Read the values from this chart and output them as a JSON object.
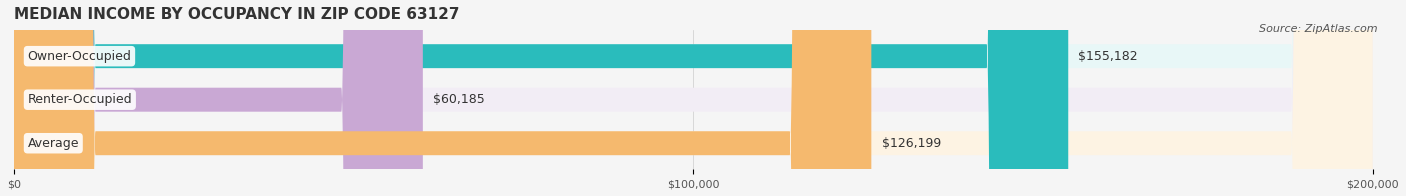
{
  "title": "MEDIAN INCOME BY OCCUPANCY IN ZIP CODE 63127",
  "source": "Source: ZipAtlas.com",
  "categories": [
    "Owner-Occupied",
    "Renter-Occupied",
    "Average"
  ],
  "values": [
    155182,
    60185,
    126199
  ],
  "labels": [
    "$155,182",
    "$60,185",
    "$126,199"
  ],
  "bar_colors": [
    "#2abcbc",
    "#c9a8d4",
    "#f5b96e"
  ],
  "bar_bg_colors": [
    "#e8f7f7",
    "#f2edf5",
    "#fdf3e3"
  ],
  "xlim": [
    0,
    200000
  ],
  "xticks": [
    0,
    100000,
    200000
  ],
  "xtick_labels": [
    "$0",
    "$100,000",
    "$200,000"
  ],
  "title_fontsize": 11,
  "source_fontsize": 8,
  "label_fontsize": 9,
  "category_fontsize": 9,
  "bar_height": 0.55,
  "figsize": [
    14.06,
    1.96
  ],
  "dpi": 100
}
